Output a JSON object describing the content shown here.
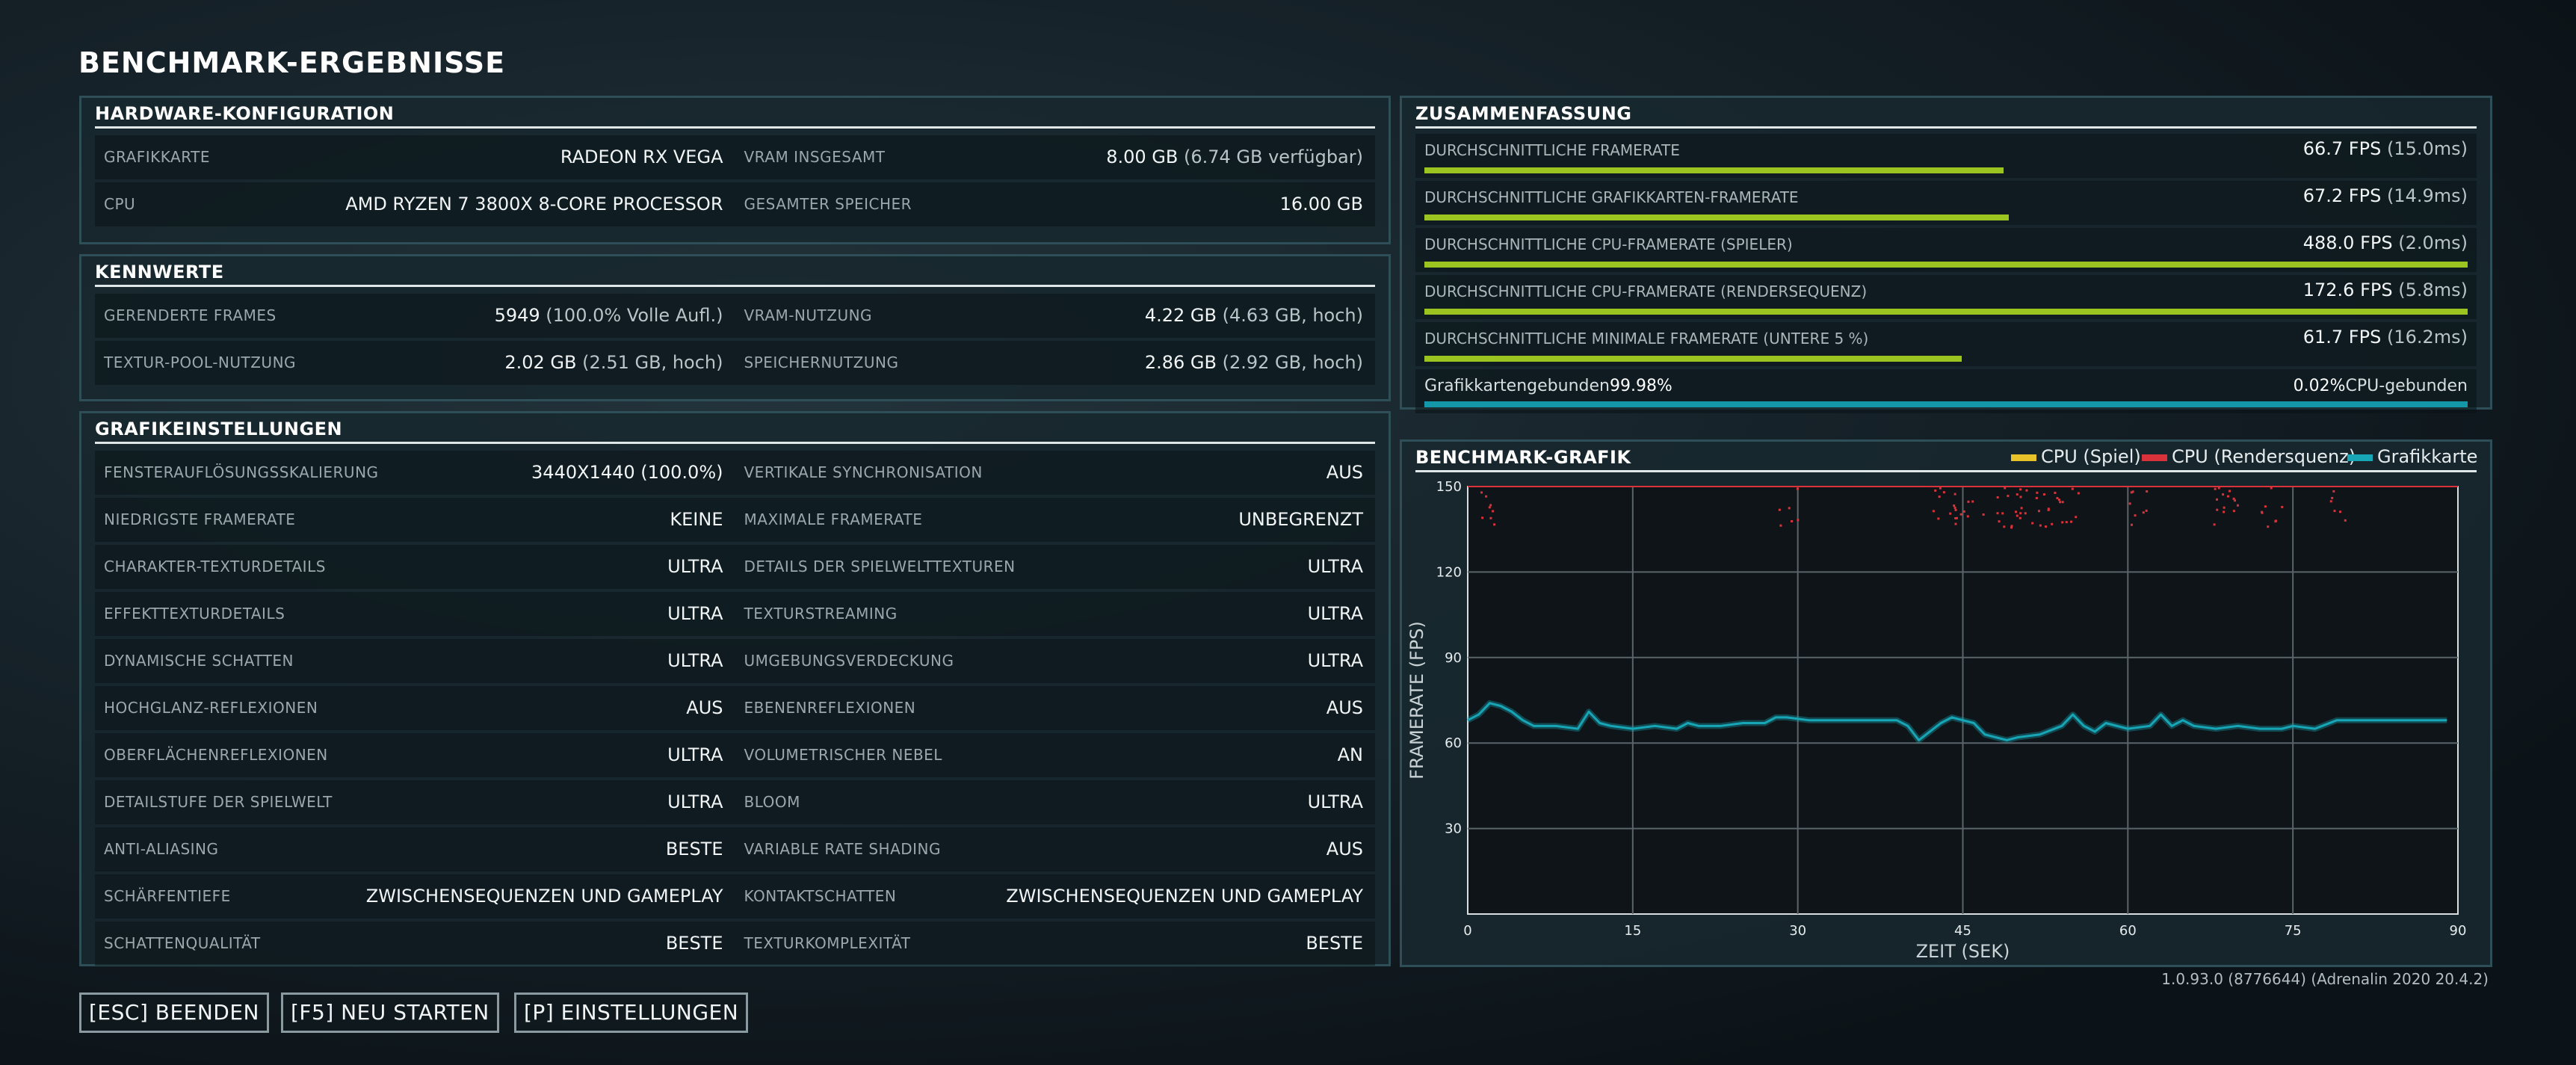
{
  "page_title": "BENCHMARK-ERGEBNISSE",
  "hardware": {
    "heading": "HARDWARE-KONFIGURATION",
    "rows": [
      {
        "l_label": "GRAFIKKARTE",
        "l_value": "RADEON RX VEGA",
        "l_sec": "",
        "r_label": "VRAM INSGESAMT",
        "r_value": "8.00 GB",
        "r_sec": " (6.74 GB verfügbar)"
      },
      {
        "l_label": "CPU",
        "l_value": "AMD RYZEN 7 3800X 8-CORE PROCESSOR",
        "l_sec": "",
        "r_label": "GESAMTER SPEICHER",
        "r_value": "16.00 GB",
        "r_sec": ""
      }
    ]
  },
  "kennwerte": {
    "heading": "KENNWERTE",
    "rows": [
      {
        "l_label": "GERENDERTE FRAMES",
        "l_value": "5949",
        "l_sec": " (100.0% Volle Aufl.)",
        "r_label": "VRAM-NUTZUNG",
        "r_value": "4.22 GB",
        "r_sec": " (4.63 GB, hoch)"
      },
      {
        "l_label": "TEXTUR-POOL-NUTZUNG",
        "l_value": "2.02 GB",
        "l_sec": " (2.51 GB, hoch)",
        "r_label": "SPEICHERNUTZUNG",
        "r_value": "2.86 GB",
        "r_sec": " (2.92 GB, hoch)"
      }
    ]
  },
  "grafik": {
    "heading": "GRAFIKEINSTELLUNGEN",
    "rows": [
      {
        "l_label": "FENSTERAUFLÖSUNGSSKALIERUNG",
        "l_value": "3440X1440 (100.0%)",
        "l_sec": "",
        "r_label": "VERTIKALE SYNCHRONISATION",
        "r_value": "AUS",
        "r_sec": ""
      },
      {
        "l_label": "NIEDRIGSTE FRAMERATE",
        "l_value": "KEINE",
        "l_sec": "",
        "r_label": "MAXIMALE FRAMERATE",
        "r_value": "UNBEGRENZT",
        "r_sec": ""
      },
      {
        "l_label": "CHARAKTER-TEXTURDETAILS",
        "l_value": "ULTRA",
        "l_sec": "",
        "r_label": "DETAILS DER SPIELWELTTEXTUREN",
        "r_value": "ULTRA",
        "r_sec": ""
      },
      {
        "l_label": "EFFEKTTEXTURDETAILS",
        "l_value": "ULTRA",
        "l_sec": "",
        "r_label": "TEXTURSTREAMING",
        "r_value": "ULTRA",
        "r_sec": ""
      },
      {
        "l_label": "DYNAMISCHE SCHATTEN",
        "l_value": "ULTRA",
        "l_sec": "",
        "r_label": "UMGEBUNGSVERDECKUNG",
        "r_value": "ULTRA",
        "r_sec": ""
      },
      {
        "l_label": "HOCHGLANZ-REFLEXIONEN",
        "l_value": "AUS",
        "l_sec": "",
        "r_label": "EBENENREFLEXIONEN",
        "r_value": "AUS",
        "r_sec": ""
      },
      {
        "l_label": "OBERFLÄCHENREFLEXIONEN",
        "l_value": "ULTRA",
        "l_sec": "",
        "r_label": "VOLUMETRISCHER NEBEL",
        "r_value": "AN",
        "r_sec": ""
      },
      {
        "l_label": "DETAILSTUFE DER SPIELWELT",
        "l_value": "ULTRA",
        "l_sec": "",
        "r_label": "BLOOM",
        "r_value": "ULTRA",
        "r_sec": ""
      },
      {
        "l_label": "ANTI-ALIASING",
        "l_value": "BESTE",
        "l_sec": "",
        "r_label": "VARIABLE RATE SHADING",
        "r_value": "AUS",
        "r_sec": ""
      },
      {
        "l_label": "SCHÄRFENTIEFE",
        "l_value": "ZWISCHENSEQUENZEN UND GAMEPLAY",
        "l_sec": "",
        "r_label": "KONTAKTSCHATTEN",
        "r_value": "ZWISCHENSEQUENZEN UND GAMEPLAY",
        "r_sec": ""
      },
      {
        "l_label": "SCHATTENQUALITÄT",
        "l_value": "BESTE",
        "l_sec": "",
        "r_label": "TEXTURKOMPLEXITÄT",
        "r_value": "BESTE",
        "r_sec": ""
      }
    ]
  },
  "summary": {
    "heading": "ZUSAMMENFASSUNG",
    "rows": [
      {
        "label": "DURCHSCHNITTLICHE FRAMERATE",
        "value": "66.7 FPS",
        "sec": " (15.0ms)",
        "fill": 0.555
      },
      {
        "label": "DURCHSCHNITTLICHE GRAFIKKARTEN-FRAMERATE",
        "value": "67.2 FPS",
        "sec": " (14.9ms)",
        "fill": 0.56
      },
      {
        "label": "DURCHSCHNITTLICHE CPU-FRAMERATE (SPIELER)",
        "value": "488.0 FPS",
        "sec": " (2.0ms)",
        "fill": 1.0
      },
      {
        "label": "DURCHSCHNITTLICHE CPU-FRAMERATE (RENDERSEQUENZ)",
        "value": "172.6 FPS",
        "sec": " (5.8ms)",
        "fill": 1.0
      },
      {
        "label": "DURCHSCHNITTLICHE MINIMALE FRAMERATE (UNTERE 5 %)",
        "value": "61.7 FPS",
        "sec": " (16.2ms)",
        "fill": 0.515
      }
    ],
    "gpu_bound_label": "Grafikkartengebunden",
    "gpu_bound_value": "99.98%",
    "cpu_bound_value": "0.02%",
    "cpu_bound_label": "CPU-gebunden",
    "gpu_bound_fraction": 0.9998
  },
  "chart_panel_heading": "BENCHMARK-GRAFIK",
  "legend": [
    {
      "name": "CPU (Spiel)",
      "color": "#e8c229"
    },
    {
      "name": "CPU (Rendersquenz)",
      "color": "#d9323a"
    },
    {
      "name": "Grafikkarte",
      "color": "#16a6b6"
    }
  ],
  "chart_data": {
    "type": "line",
    "title": "BENCHMARK-GRAFIK",
    "xlabel": "ZEIT (SEK)",
    "ylabel": "FRAMERATE (FPS)",
    "xlim": [
      0,
      90
    ],
    "ylim": [
      0,
      150
    ],
    "x_ticks": [
      "0",
      "15",
      "30",
      "45",
      "60",
      "75",
      "90"
    ],
    "y_ticks": [
      "30",
      "60",
      "90",
      "120",
      "150"
    ],
    "series": [
      {
        "name": "Grafikkarte",
        "color": "#16a6b6",
        "x": [
          0,
          1,
          2,
          3,
          4,
          5,
          6,
          8,
          10,
          11,
          12,
          13,
          15,
          17,
          19,
          20,
          21,
          23,
          25,
          27,
          28,
          29,
          31,
          33,
          35,
          37,
          39,
          40,
          41,
          42,
          43,
          44,
          45,
          46,
          47,
          48,
          49,
          50,
          52,
          54,
          55,
          56,
          57,
          58,
          60,
          62,
          63,
          64,
          65,
          66,
          68,
          70,
          72,
          74,
          75,
          77,
          79,
          81,
          83,
          85,
          87,
          89
        ],
        "y": [
          68,
          70,
          74,
          73,
          71,
          68,
          66,
          66,
          65,
          71,
          67,
          66,
          65,
          66,
          65,
          67,
          66,
          66,
          67,
          67,
          69,
          69,
          68,
          68,
          68,
          68,
          68,
          66,
          61,
          64,
          67,
          69,
          68,
          67,
          63,
          62,
          61,
          62,
          63,
          66,
          70,
          66,
          64,
          67,
          65,
          66,
          70,
          66,
          68,
          66,
          65,
          66,
          65,
          65,
          66,
          65,
          68,
          68,
          68,
          68,
          68,
          68
        ]
      },
      {
        "name": "CPU (Rendersquenz)",
        "color": "#d9323a",
        "note": "capped near top of axis with scattered points around 130-150",
        "x": [
          0,
          90
        ],
        "y": [
          150,
          150
        ]
      },
      {
        "name": "CPU (Spiel)",
        "color": "#e8c229",
        "note": "off scale above 150 FPS",
        "x": [],
        "y": []
      }
    ]
  },
  "buttons": {
    "quit": "[ESC] BEENDEN",
    "restart": "[F5] NEU STARTEN",
    "settings": "[P] EINSTELLUNGEN"
  },
  "version": "1.0.93.0 (8776644) (Adrenalin 2020 20.4.2)"
}
